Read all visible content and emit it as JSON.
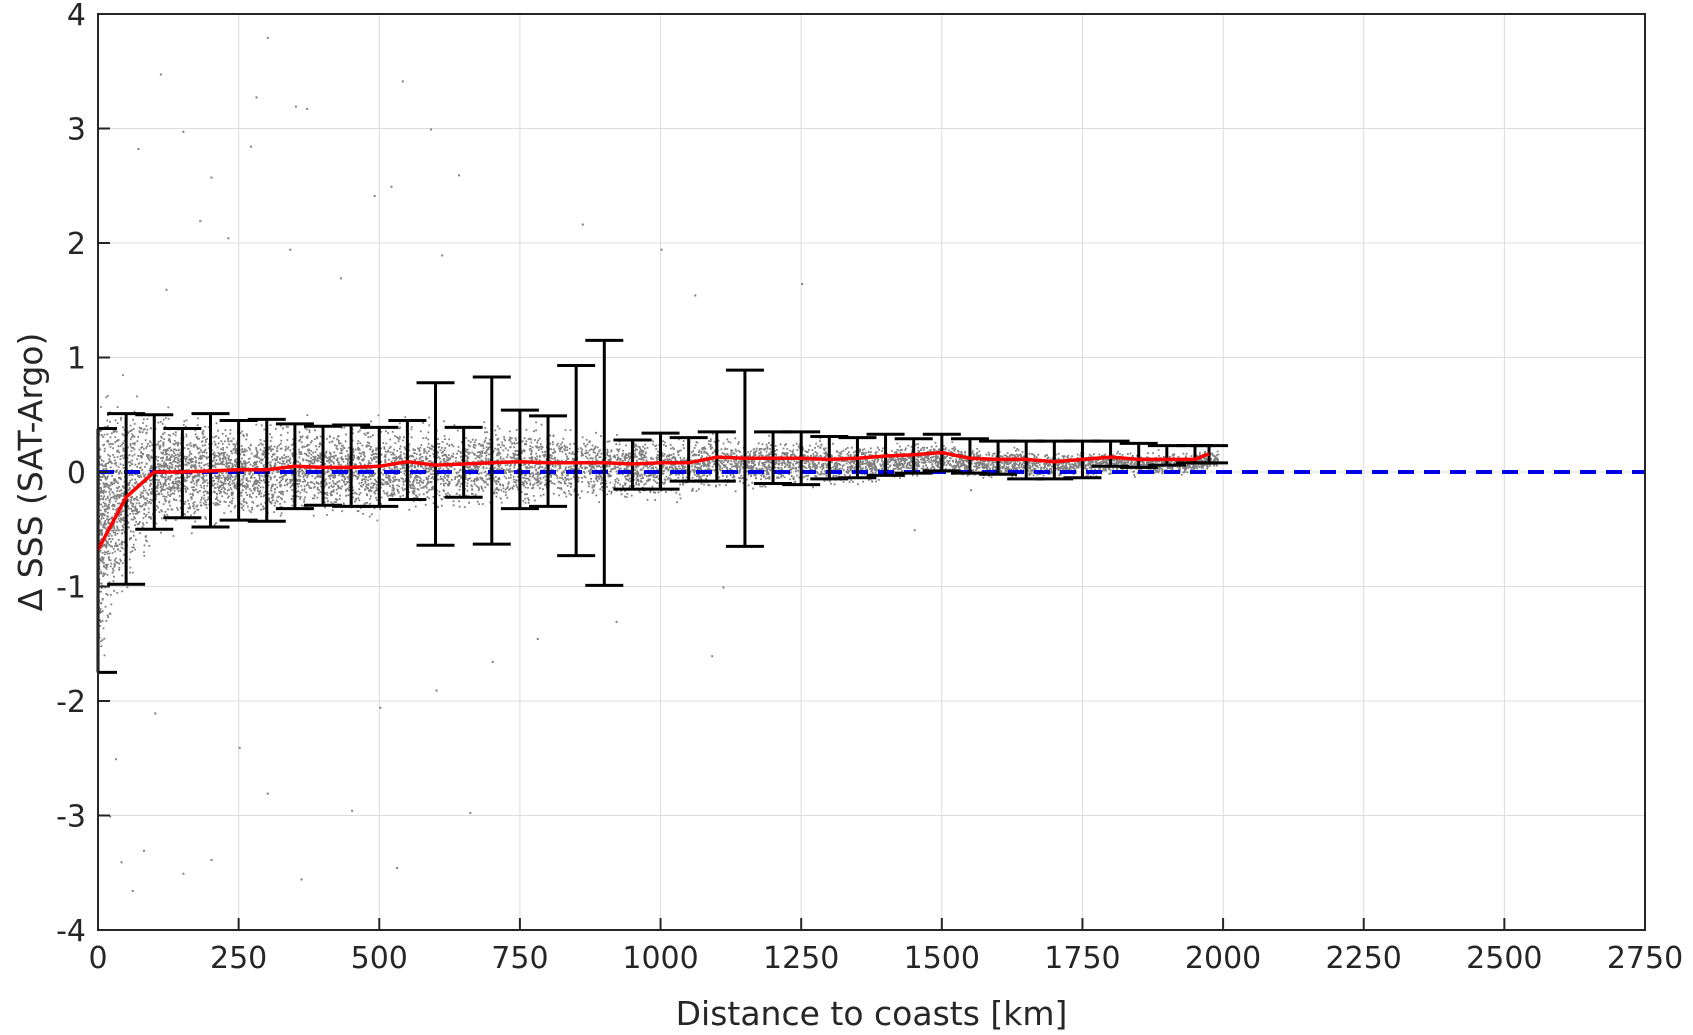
{
  "chart_data": {
    "type": "scatter",
    "xlabel": "Distance to coasts [km]",
    "ylabel": "Δ SSS (SAT-Argo)",
    "xlim": [
      0,
      2750
    ],
    "ylim": [
      -4,
      4
    ],
    "x_ticks": [
      0,
      250,
      500,
      750,
      1000,
      1250,
      1500,
      1750,
      2000,
      2250,
      2500,
      2750
    ],
    "y_ticks": [
      -4,
      -3,
      -2,
      -1,
      0,
      1,
      2,
      3,
      4
    ],
    "x_tick_labels": [
      "0",
      "250",
      "500",
      "750",
      "1000",
      "1250",
      "1500",
      "1750",
      "2000",
      "2250",
      "2500",
      "2750"
    ],
    "y_tick_labels": [
      "-4",
      "-3",
      "-2",
      "-1",
      "0",
      "1",
      "2",
      "3",
      "4"
    ],
    "grid": true,
    "colors": {
      "points": "#808080",
      "mean_line": "#ff0000",
      "zero_line": "#0000e6",
      "error_bars": "#000000",
      "grid": "#dcdcdc"
    },
    "reference_line": {
      "y": 0,
      "style": "dashed"
    },
    "series": [
      {
        "kind": "binned_mean",
        "x": [
          0,
          50,
          100,
          150,
          200,
          250,
          300,
          350,
          400,
          450,
          500,
          550,
          600,
          650,
          700,
          750,
          800,
          850,
          900,
          950,
          1000,
          1050,
          1100,
          1150,
          1200,
          1250,
          1300,
          1350,
          1400,
          1450,
          1500,
          1550,
          1600,
          1650,
          1700,
          1750,
          1800,
          1850,
          1900,
          1950,
          1975
        ],
        "y": [
          -0.68,
          -0.22,
          0.0,
          0.0,
          0.01,
          0.02,
          0.02,
          0.05,
          0.04,
          0.04,
          0.05,
          0.09,
          0.06,
          0.07,
          0.08,
          0.09,
          0.08,
          0.08,
          0.08,
          0.07,
          0.08,
          0.08,
          0.13,
          0.12,
          0.12,
          0.12,
          0.11,
          0.12,
          0.14,
          0.15,
          0.17,
          0.12,
          0.11,
          0.11,
          0.09,
          0.11,
          0.13,
          0.11,
          0.11,
          0.11,
          0.16
        ],
        "lower": [
          -1.75,
          -0.98,
          -0.5,
          -0.4,
          -0.48,
          -0.42,
          -0.43,
          -0.32,
          -0.29,
          -0.3,
          -0.3,
          -0.24,
          -0.64,
          -0.22,
          -0.63,
          -0.32,
          -0.3,
          -0.73,
          -0.99,
          -0.15,
          -0.15,
          -0.08,
          -0.08,
          -0.65,
          -0.1,
          -0.11,
          -0.06,
          -0.05,
          -0.03,
          -0.01,
          0.01,
          -0.01,
          -0.02,
          -0.06,
          -0.06,
          -0.05,
          0.05,
          0.04,
          0.06,
          0.08,
          0.08
        ],
        "upper": [
          0.38,
          0.51,
          0.5,
          0.38,
          0.51,
          0.45,
          0.46,
          0.42,
          0.4,
          0.41,
          0.39,
          0.45,
          0.78,
          0.39,
          0.83,
          0.54,
          0.49,
          0.93,
          1.15,
          0.28,
          0.34,
          0.3,
          0.35,
          0.89,
          0.35,
          0.35,
          0.31,
          0.3,
          0.33,
          0.29,
          0.33,
          0.29,
          0.27,
          0.27,
          0.27,
          0.27,
          0.27,
          0.25,
          0.23,
          0.23,
          0.23
        ]
      }
    ],
    "scatter_envelope": {
      "x": [
        0,
        50,
        100,
        200,
        300,
        400,
        500,
        600,
        700,
        800,
        900,
        1000,
        1100,
        1200,
        1300,
        1400,
        1500,
        1600,
        1700,
        1800,
        1900,
        1950,
        2000
      ],
      "spread": [
        1.2,
        0.9,
        0.6,
        0.45,
        0.43,
        0.42,
        0.41,
        0.4,
        0.37,
        0.35,
        0.32,
        0.28,
        0.24,
        0.22,
        0.2,
        0.18,
        0.16,
        0.14,
        0.13,
        0.12,
        0.11,
        0.1,
        0.09
      ]
    },
    "outliers": [
      [
        110,
        3.48
      ],
      [
        300,
        3.8
      ],
      [
        280,
        3.28
      ],
      [
        540,
        3.42
      ],
      [
        350,
        3.2
      ],
      [
        370,
        3.18
      ],
      [
        590,
        3.0
      ],
      [
        150,
        2.98
      ],
      [
        70,
        2.83
      ],
      [
        270,
        2.85
      ],
      [
        520,
        2.5
      ],
      [
        490,
        2.42
      ],
      [
        640,
        2.6
      ],
      [
        200,
        2.58
      ],
      [
        180,
        2.2
      ],
      [
        230,
        2.05
      ],
      [
        860,
        2.17
      ],
      [
        1000,
        1.95
      ],
      [
        1250,
        1.65
      ],
      [
        610,
        1.9
      ],
      [
        1060,
        1.55
      ],
      [
        120,
        1.6
      ],
      [
        430,
        1.7
      ],
      [
        340,
        1.95
      ],
      [
        30,
        -2.5
      ],
      [
        20,
        -3.0
      ],
      [
        40,
        -3.4
      ],
      [
        60,
        -3.65
      ],
      [
        80,
        -3.3
      ],
      [
        150,
        -3.5
      ],
      [
        200,
        -3.38
      ],
      [
        360,
        -3.55
      ],
      [
        530,
        -3.45
      ],
      [
        450,
        -2.95
      ],
      [
        660,
        -2.97
      ],
      [
        600,
        -1.9
      ],
      [
        780,
        -1.45
      ],
      [
        1090,
        -1.6
      ],
      [
        1110,
        -1.0
      ],
      [
        920,
        -1.3
      ],
      [
        300,
        -2.8
      ],
      [
        100,
        -2.1
      ],
      [
        500,
        -2.05
      ],
      [
        250,
        -2.4
      ],
      [
        700,
        -1.65
      ],
      [
        1550,
        -0.15
      ],
      [
        1450,
        -0.5
      ]
    ]
  }
}
